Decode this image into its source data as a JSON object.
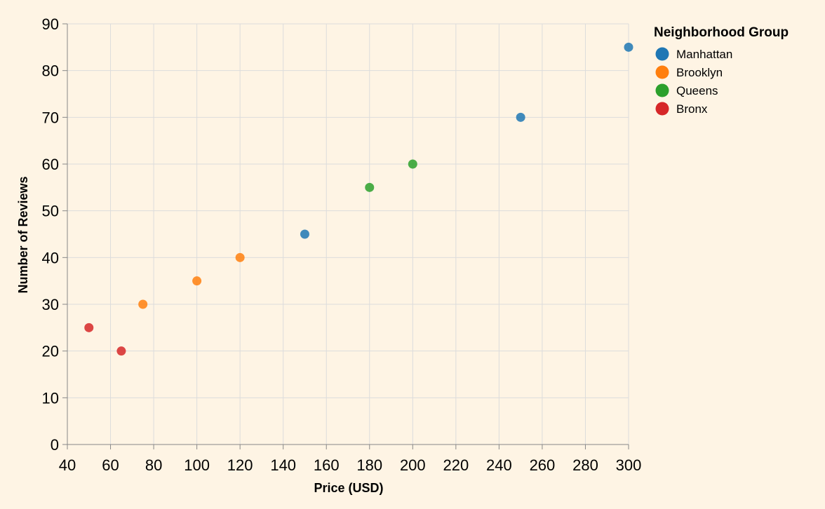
{
  "chart_data": {
    "type": "scatter",
    "title": "",
    "xlabel": "Price (USD)",
    "ylabel": "Number of Reviews",
    "xlim": [
      40,
      300
    ],
    "ylim": [
      0,
      90
    ],
    "xticks": [
      40,
      60,
      80,
      100,
      120,
      140,
      160,
      180,
      200,
      220,
      240,
      260,
      280,
      300
    ],
    "yticks": [
      0,
      10,
      20,
      30,
      40,
      50,
      60,
      70,
      80,
      90
    ],
    "grid": true,
    "legend": {
      "title": "Neighborhood Group",
      "placement": "right"
    },
    "series": [
      {
        "name": "Manhattan",
        "color": "#1f77b4",
        "points": [
          [
            150,
            45
          ],
          [
            250,
            70
          ],
          [
            300,
            85
          ]
        ]
      },
      {
        "name": "Brooklyn",
        "color": "#ff7f0e",
        "points": [
          [
            75,
            30
          ],
          [
            100,
            35
          ],
          [
            120,
            40
          ]
        ]
      },
      {
        "name": "Queens",
        "color": "#2ca02c",
        "points": [
          [
            180,
            55
          ],
          [
            200,
            60
          ]
        ]
      },
      {
        "name": "Bronx",
        "color": "#d62728",
        "points": [
          [
            50,
            25
          ],
          [
            65,
            20
          ]
        ]
      }
    ]
  }
}
